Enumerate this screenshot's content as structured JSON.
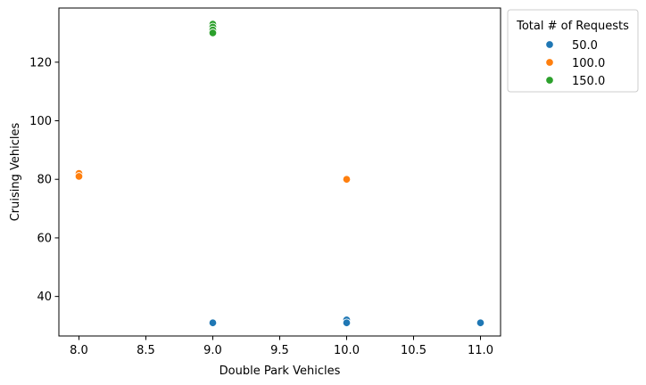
{
  "chart_data": {
    "type": "scatter",
    "xlabel": "Double Park Vehicles",
    "ylabel": "Cruising Vehicles",
    "xlim": [
      7.85,
      11.15
    ],
    "ylim": [
      26.5,
      138.5
    ],
    "xticks": [
      8.0,
      8.5,
      9.0,
      9.5,
      10.0,
      10.5,
      11.0
    ],
    "xtick_labels": [
      "8.0",
      "8.5",
      "9.0",
      "9.5",
      "10.0",
      "10.5",
      "11.0"
    ],
    "yticks": [
      40,
      60,
      80,
      100,
      120
    ],
    "ytick_labels": [
      "40",
      "60",
      "80",
      "100",
      "120"
    ],
    "grid": false,
    "legend": {
      "title": "Total # of Requests",
      "placement": "outside-top-right"
    },
    "series": [
      {
        "name": "50.0",
        "color": "#1f77b4",
        "points": [
          [
            9,
            31
          ],
          [
            10,
            32
          ],
          [
            10,
            31
          ],
          [
            11,
            31
          ]
        ]
      },
      {
        "name": "100.0",
        "color": "#ff7f0e",
        "points": [
          [
            8,
            82
          ],
          [
            8,
            81
          ],
          [
            10,
            80
          ]
        ]
      },
      {
        "name": "150.0",
        "color": "#2ca02c",
        "points": [
          [
            9,
            133
          ],
          [
            9,
            132
          ],
          [
            9,
            131
          ],
          [
            9,
            130
          ]
        ]
      }
    ]
  }
}
